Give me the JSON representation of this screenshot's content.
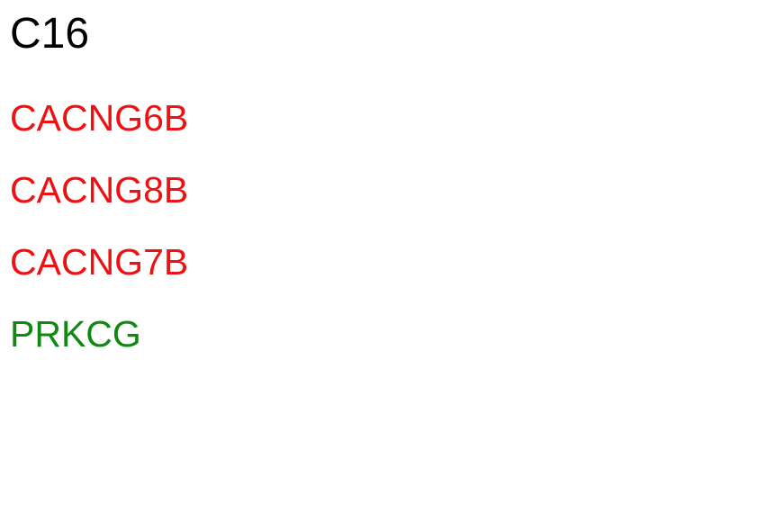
{
  "title": "C16",
  "genes": [
    {
      "label": "CACNG6B",
      "color": "#ee1111"
    },
    {
      "label": "CACNG8B",
      "color": "#ee1111"
    },
    {
      "label": "CACNG7B",
      "color": "#ee1111"
    },
    {
      "label": "PRKCG",
      "color": "#118811"
    }
  ]
}
